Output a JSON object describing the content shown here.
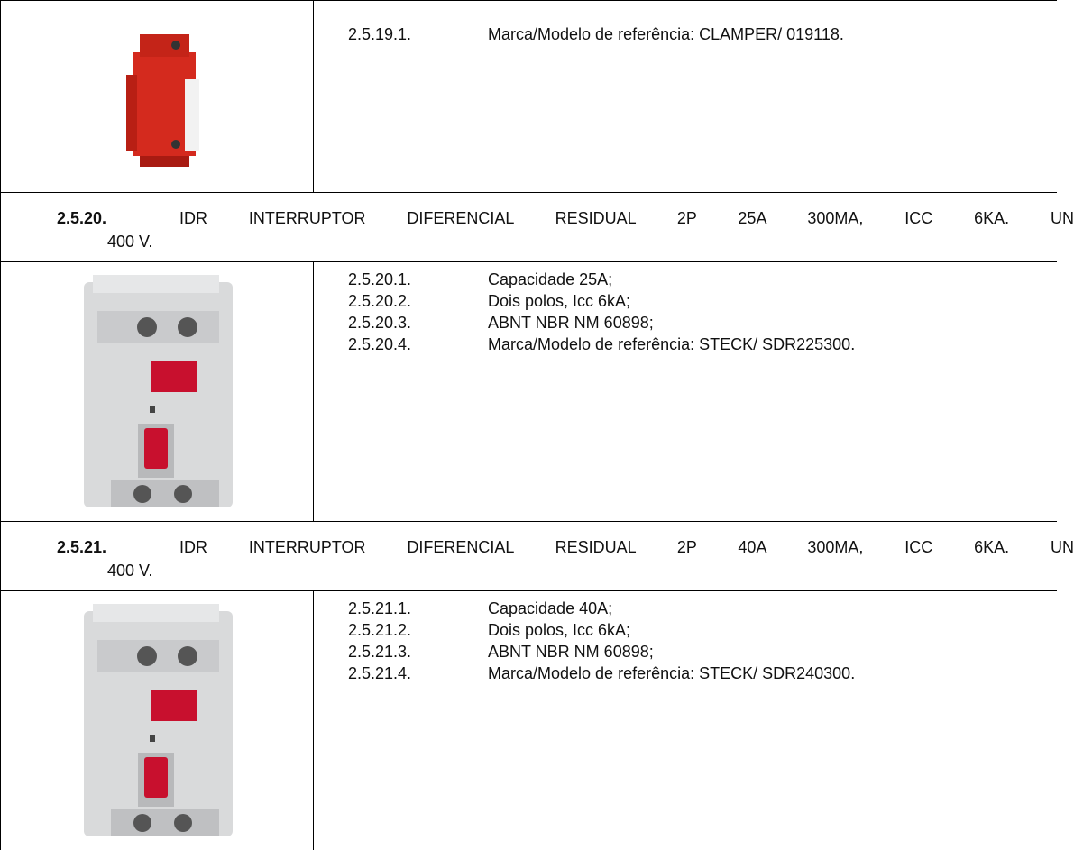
{
  "sections": [
    {
      "items": [
        {
          "number": "2.5.19.1.",
          "text": "Marca/Modelo de referência: CLAMPER/ 019118."
        }
      ]
    },
    {
      "number": "2.5.20.",
      "title": [
        "IDR INTERRUPTOR DIFERENCIAL RESIDUAL 2P 25A 300MA, ICC 6KA. UN",
        "400 V."
      ],
      "items": [
        {
          "number": "2.5.20.1.",
          "text": "Capacidade 25A;"
        },
        {
          "number": "2.5.20.2.",
          "text": "Dois polos, Icc 6kA;"
        },
        {
          "number": "2.5.20.3.",
          "text": "ABNT NBR NM 60898;"
        },
        {
          "number": "2.5.20.4.",
          "text": "Marca/Modelo de referência: STECK/ SDR225300."
        }
      ]
    },
    {
      "number": "2.5.21.",
      "title": [
        "IDR INTERRUPTOR DIFERENCIAL RESIDUAL 2P 40A 300MA, ICC 6KA. UN",
        "400 V."
      ],
      "items": [
        {
          "number": "2.5.21.1.",
          "text": "Capacidade 40A;"
        },
        {
          "number": "2.5.21.2.",
          "text": "Dois polos, Icc 6kA;"
        },
        {
          "number": "2.5.21.3.",
          "text": "ABNT NBR NM 60898;"
        },
        {
          "number": "2.5.21.4.",
          "text": "Marca/Modelo de referência: STECK/ SDR240300."
        }
      ]
    }
  ]
}
